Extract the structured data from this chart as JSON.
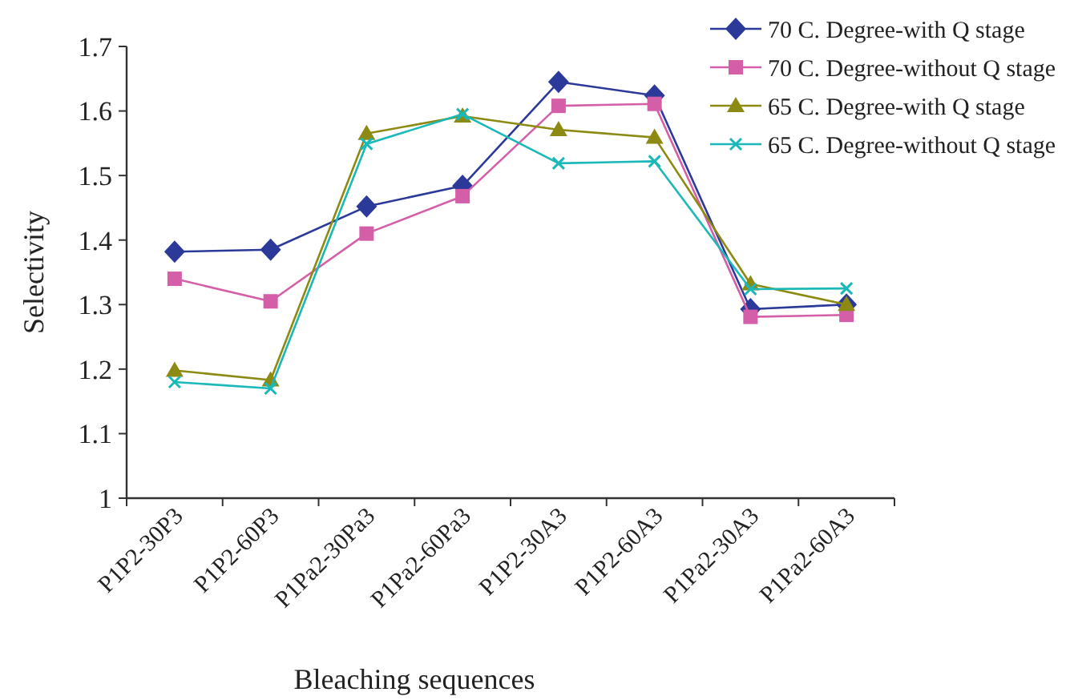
{
  "chart_data": {
    "type": "line",
    "xlabel": "Bleaching sequences",
    "ylabel": "Selectivity",
    "categories": [
      "P1P2-30P3",
      "P1P2-60P3",
      "P1Pa2-30Pa3",
      "P1Pa2-60Pa3",
      "P1P2-30A3",
      "P1P2-60A3",
      "P1Pa2-30A3",
      "P1Pa2-60A3"
    ],
    "series": [
      {
        "name": "70 C. Degree-with Q stage",
        "color": "#2b3a99",
        "marker": "diamond",
        "values": [
          1.382,
          1.385,
          1.452,
          1.484,
          1.645,
          1.624,
          1.293,
          1.3
        ]
      },
      {
        "name": "70 C. Degree-without Q stage",
        "color": "#d45fa8",
        "marker": "square",
        "values": [
          1.34,
          1.305,
          1.41,
          1.468,
          1.608,
          1.611,
          1.281,
          1.284
        ]
      },
      {
        "name": "65 C. Degree-with Q stage",
        "color": "#8c8a12",
        "marker": "triangle",
        "values": [
          1.198,
          1.183,
          1.565,
          1.592,
          1.571,
          1.559,
          1.332,
          1.3
        ]
      },
      {
        "name": "65 C. Degree-without Q stage",
        "color": "#1ab8b8",
        "marker": "cross",
        "values": [
          1.18,
          1.17,
          1.549,
          1.595,
          1.519,
          1.522,
          1.324,
          1.325
        ]
      }
    ],
    "ylim": [
      1,
      1.7
    ],
    "yticks": [
      1,
      1.1,
      1.2,
      1.3,
      1.4,
      1.5,
      1.6,
      1.7
    ],
    "grid": false,
    "legend": "top right",
    "line_style": "solid"
  }
}
